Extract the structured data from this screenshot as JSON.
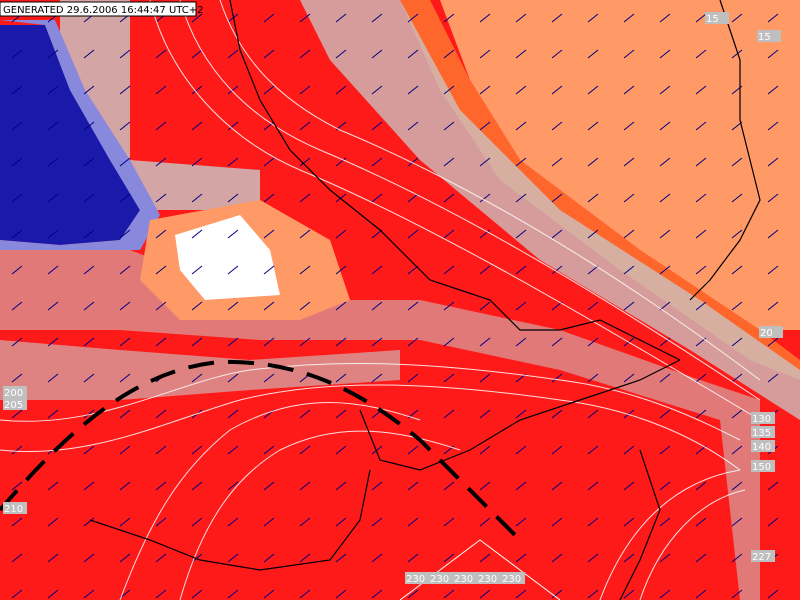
{
  "header": {
    "generated": "GENERATED 29.6.2006 16:44:47 UTC+2"
  },
  "contour_labels": [
    {
      "text": "210"
    },
    {
      "text": "205"
    },
    {
      "text": "200"
    },
    {
      "text": "20"
    },
    {
      "text": "227"
    },
    {
      "text": "230"
    },
    {
      "text": "230"
    },
    {
      "text": "230"
    },
    {
      "text": "230"
    },
    {
      "text": "230"
    },
    {
      "text": "150"
    },
    {
      "text": "140"
    },
    {
      "text": "135"
    },
    {
      "text": "130"
    },
    {
      "text": "15"
    },
    {
      "text": "15"
    }
  ]
}
